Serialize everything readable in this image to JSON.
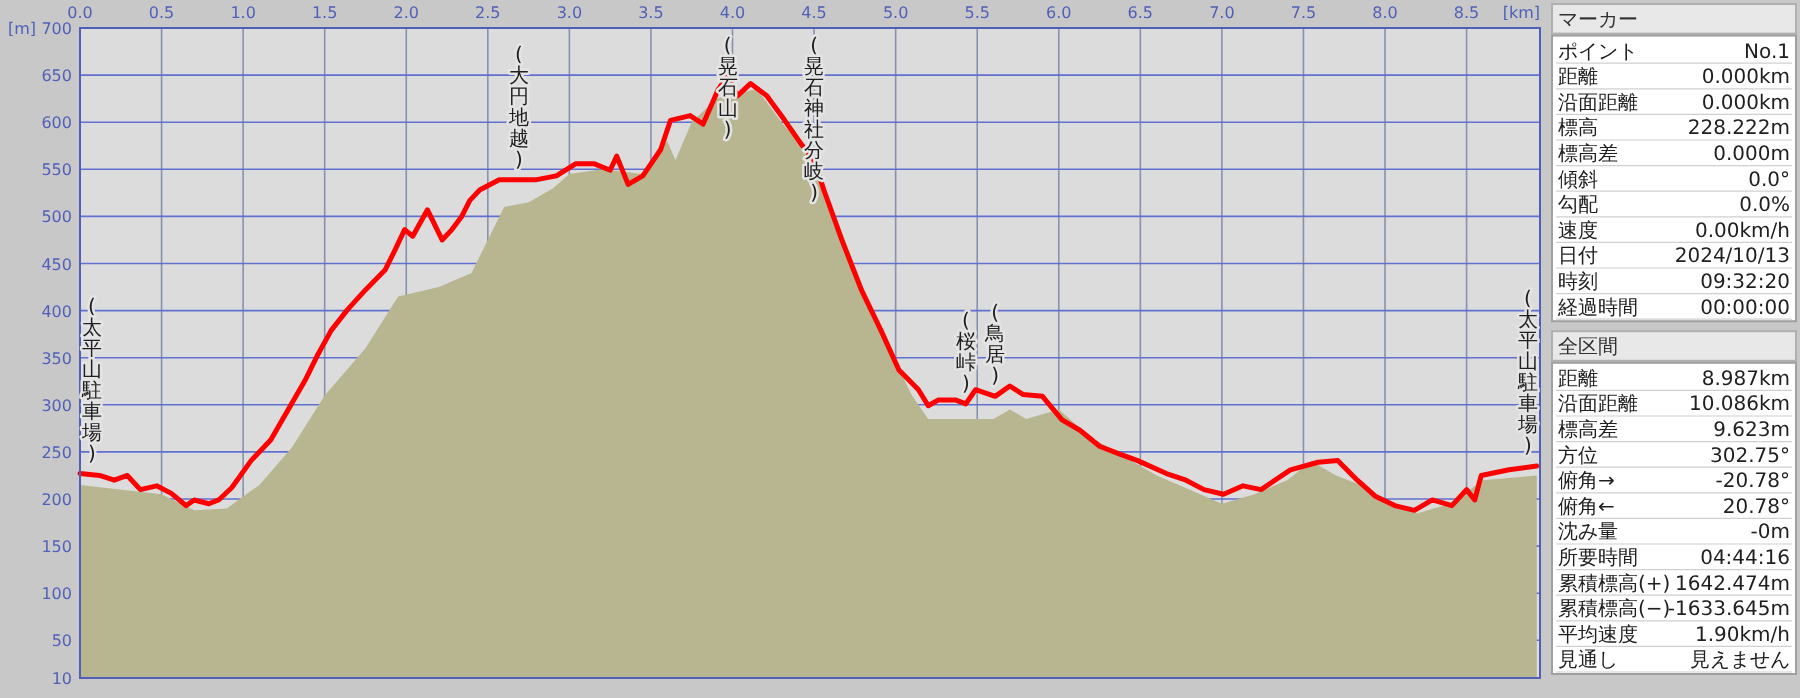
{
  "chart_data": [
    {
      "type": "area",
      "xlabel": "[km]",
      "ylabel": "[m]",
      "xlim": [
        0,
        8.95
      ],
      "ylim": [
        10,
        700
      ],
      "xticks": [
        {
          "value": 0,
          "label": "0.0"
        },
        0.5,
        {
          "value": 1,
          "label": "1.0"
        },
        1.5,
        {
          "value": 2,
          "label": "2.0"
        },
        2.5,
        {
          "value": 3,
          "label": "3.0"
        },
        3.5,
        {
          "value": 4,
          "label": "4.0"
        },
        4.5,
        {
          "value": 5,
          "label": "5.0"
        },
        5.5,
        {
          "value": 6,
          "label": "6.0"
        },
        6.5,
        {
          "value": 7,
          "label": "7.0"
        },
        7.5,
        {
          "value": 8,
          "label": "8.0"
        },
        8.5
      ],
      "yticks": [
        10,
        50,
        100,
        150,
        200,
        250,
        300,
        350,
        400,
        450,
        500,
        550,
        600,
        650,
        700
      ],
      "grid": true,
      "series": [
        {
          "type": "area",
          "color": "#b8b690",
          "x": [
            0,
            0.5,
            0.7,
            0.9,
            1.1,
            1.3,
            1.5,
            1.75,
            1.95,
            2.2,
            2.4,
            2.6,
            2.75,
            2.9,
            3.0,
            3.2,
            3.45,
            3.6,
            3.65,
            3.75,
            3.9,
            4.0,
            4.15,
            4.3,
            4.5,
            4.7,
            4.9,
            5.1,
            5.2,
            5.4,
            5.6,
            5.7,
            5.8,
            6.0,
            6.2,
            6.4,
            6.6,
            6.8,
            7.0,
            7.2,
            7.4,
            7.55,
            7.7,
            7.85,
            8.0,
            8.2,
            8.4,
            8.6,
            8.93
          ],
          "values": [
            215,
            205,
            188,
            190,
            215,
            255,
            310,
            360,
            415,
            425,
            440,
            510,
            515,
            530,
            545,
            550,
            545,
            580,
            560,
            600,
            625,
            630,
            635,
            600,
            560,
            470,
            380,
            310,
            285,
            285,
            285,
            295,
            285,
            295,
            265,
            245,
            225,
            210,
            195,
            205,
            220,
            240,
            225,
            215,
            195,
            185,
            195,
            220,
            225
          ]
        },
        {
          "type": "line",
          "color": "#ff0000",
          "x": [
            0,
            0.12,
            0.21,
            0.29,
            0.37,
            0.47,
            0.56,
            0.65,
            0.7,
            0.79,
            0.85,
            0.93,
            1.05,
            1.17,
            1.29,
            1.38,
            1.46,
            1.54,
            1.64,
            1.75,
            1.87,
            1.93,
            1.99,
            2.04,
            2.13,
            2.22,
            2.28,
            2.34,
            2.39,
            2.45,
            2.57,
            2.69,
            2.8,
            2.92,
            3.04,
            3.15,
            3.25,
            3.29,
            3.36,
            3.45,
            3.56,
            3.62,
            3.74,
            3.82,
            3.91,
            3.97,
            4.03,
            4.11,
            4.21,
            4.32,
            4.42,
            4.5,
            4.56,
            4.67,
            4.79,
            4.91,
            5.02,
            5.14,
            5.2,
            5.26,
            5.37,
            5.43,
            5.49,
            5.61,
            5.7,
            5.78,
            5.9,
            6.02,
            6.13,
            6.25,
            6.37,
            6.48,
            6.66,
            6.78,
            6.89,
            7.01,
            7.13,
            7.24,
            7.42,
            7.59,
            7.71,
            7.83,
            7.94,
            8.06,
            8.18,
            8.29,
            8.41,
            8.5,
            8.55,
            8.59,
            8.76,
            8.93
          ],
          "values": [
            227,
            225,
            220,
            225,
            210,
            214,
            206,
            193,
            199,
            195,
            199,
            212,
            241,
            263,
            299,
            326,
            354,
            379,
            401,
            422,
            443,
            464,
            486,
            479,
            507,
            475,
            486,
            500,
            517,
            528,
            539,
            539,
            539,
            543,
            556,
            556,
            549,
            564,
            534,
            543,
            571,
            602,
            607,
            598,
            634,
            649,
            628,
            641,
            628,
            602,
            577,
            560,
            528,
            475,
            422,
            379,
            337,
            316,
            299,
            305,
            305,
            301,
            316,
            309,
            320,
            311,
            309,
            284,
            273,
            256,
            248,
            241,
            227,
            220,
            210,
            205,
            214,
            210,
            231,
            239,
            241,
            220,
            203,
            193,
            188,
            199,
            193,
            210,
            199,
            225,
            231,
            235
          ]
        }
      ],
      "annotations": [
        {
          "text": "(太平山駐車場)",
          "x": 0,
          "y": 227
        },
        {
          "text": "(大円地越)",
          "x": 2.69,
          "y": 539
        },
        {
          "text": "(晃石山)",
          "x": 3.97,
          "y": 649
        },
        {
          "text": "(晃石神社分岐)",
          "x": 4.5,
          "y": 560
        },
        {
          "text": "(桜峠)",
          "x": 5.43,
          "y": 301
        },
        {
          "text": "(鳥居)",
          "x": 5.61,
          "y": 309
        },
        {
          "text": "(太平山駐車場)",
          "x": 8.93,
          "y": 235
        }
      ]
    },
    {
      "type": "other",
      "title": "マーカー",
      "categories": [
        "ポイント",
        "距離",
        "沿面距離",
        "標高",
        "標高差",
        "傾斜",
        "勾配",
        "速度",
        "日付",
        "時刻",
        "経過時間"
      ],
      "value_labels": [
        "No.1",
        "0.000km",
        "0.000km",
        "228.222m",
        "0.000m",
        "0.0°",
        "0.0%",
        "0.00km/h",
        "2024/10/13",
        "09:32:20",
        "00:00:00"
      ]
    },
    {
      "type": "other",
      "title": "全区間",
      "categories": [
        "距離",
        "沿面距離",
        "標高差",
        "方位",
        "俯角→",
        "俯角←",
        "沈み量",
        "所要時間",
        "累積標高(+)",
        "累積標高(−)",
        "平均速度",
        "見通し"
      ],
      "value_labels": [
        "8.987km",
        "10.086km",
        "9.623m",
        "302.75°",
        "-20.78°",
        "20.78°",
        "-0m",
        "04:44:16",
        "1642.474m",
        "-1633.645m",
        "1.90km/h",
        "見えません"
      ]
    }
  ]
}
